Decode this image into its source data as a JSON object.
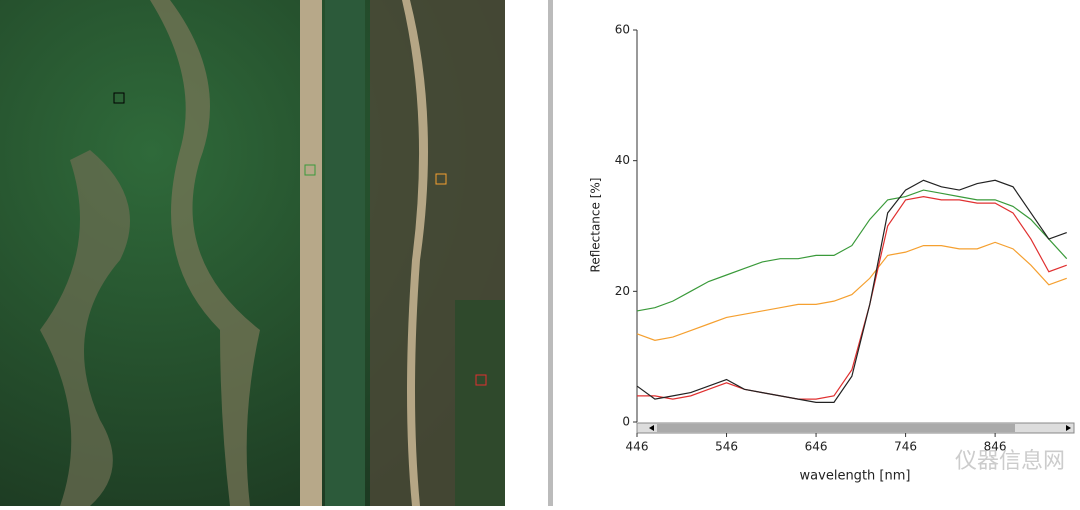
{
  "chart_data": {
    "type": "line",
    "y_label": "Reflectance [%]",
    "x_label": "wavelength [nm]",
    "x": [
      446,
      466,
      486,
      506,
      526,
      546,
      566,
      586,
      606,
      626,
      646,
      666,
      686,
      706,
      726,
      746,
      766,
      786,
      806,
      826,
      846,
      866,
      886,
      906,
      926
    ],
    "xlim": [
      446,
      933
    ],
    "xticks": [
      446,
      546,
      646,
      746,
      846
    ],
    "ylim": [
      0,
      60
    ],
    "yticks": [
      0,
      20,
      40,
      60
    ],
    "series": [
      {
        "color": "#3a9a3a",
        "values": [
          17,
          17.5,
          18.5,
          20,
          21.5,
          22.5,
          23.5,
          24.5,
          25,
          25,
          25.5,
          25.5,
          27,
          31,
          34,
          34.5,
          35.5,
          35,
          34.5,
          34,
          34,
          33,
          31,
          28,
          25
        ]
      },
      {
        "color": "#f5a030",
        "values": [
          13.5,
          12.5,
          13,
          14,
          15,
          16,
          16.5,
          17,
          17.5,
          18,
          18,
          18.5,
          19.5,
          22,
          25.5,
          26,
          27,
          27,
          26.5,
          26.5,
          27.5,
          26.5,
          24,
          21,
          22
        ]
      },
      {
        "color": "#e03030",
        "values": [
          4,
          4,
          3.5,
          4,
          5,
          6,
          5,
          4.5,
          4,
          3.5,
          3.5,
          4,
          8,
          18,
          30,
          34,
          34.5,
          34,
          34,
          33.5,
          33.5,
          32,
          28,
          23,
          24
        ]
      },
      {
        "color": "#222222",
        "values": [
          5.5,
          3.5,
          4,
          4.5,
          5.5,
          6.5,
          5,
          4.5,
          4,
          3.5,
          3,
          3,
          7,
          18,
          32,
          35.5,
          37,
          36,
          35.5,
          36.5,
          37,
          36,
          32,
          28,
          29
        ]
      }
    ]
  },
  "watermark": "仪器信息网"
}
